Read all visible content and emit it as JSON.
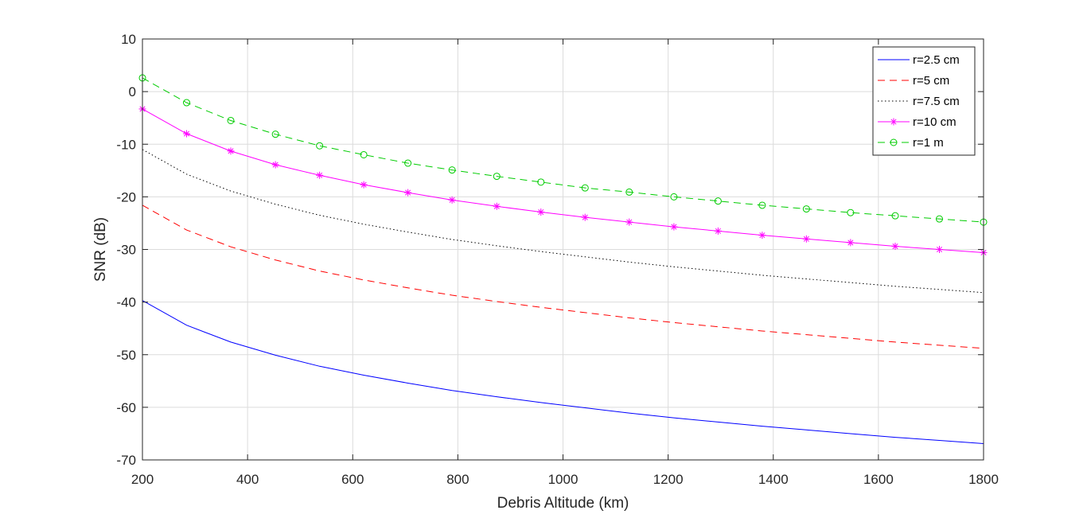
{
  "chart_data": {
    "type": "line",
    "xlabel": "Debris Altitude (km)",
    "ylabel": "SNR (dB)",
    "xlim": [
      200,
      1800
    ],
    "ylim": [
      -70,
      10
    ],
    "xticks": [
      200,
      400,
      600,
      800,
      1000,
      1200,
      1400,
      1600,
      1800
    ],
    "yticks": [
      10,
      0,
      -10,
      -20,
      -30,
      -40,
      -50,
      -60,
      -70
    ],
    "grid": true,
    "legend_position": "top-right",
    "series": [
      {
        "name": "r=2.5 cm",
        "color": "#0000ff",
        "line_style": "solid",
        "marker": "none",
        "x": [
          200,
          284,
          368,
          453,
          537,
          621,
          705,
          789,
          874,
          958,
          1042,
          1126,
          1211,
          1295,
          1379,
          1463,
          1547,
          1632,
          1716,
          1800
        ],
        "y": [
          -39.7,
          -44.4,
          -47.6,
          -50.1,
          -52.2,
          -53.9,
          -55.4,
          -56.8,
          -58.0,
          -59.1,
          -60.1,
          -61.1,
          -62.0,
          -62.8,
          -63.6,
          -64.3,
          -65.0,
          -65.7,
          -66.3,
          -66.9
        ]
      },
      {
        "name": "r=5 cm",
        "color": "#ff0000",
        "line_style": "dashed",
        "marker": "none",
        "x": [
          200,
          284,
          368,
          453,
          537,
          621,
          705,
          789,
          874,
          958,
          1042,
          1126,
          1211,
          1295,
          1379,
          1463,
          1547,
          1632,
          1716,
          1800
        ],
        "y": [
          -21.6,
          -26.3,
          -29.5,
          -32.0,
          -34.1,
          -35.8,
          -37.3,
          -38.7,
          -39.9,
          -41.0,
          -42.0,
          -43.0,
          -43.9,
          -44.7,
          -45.5,
          -46.2,
          -46.9,
          -47.6,
          -48.2,
          -48.8
        ]
      },
      {
        "name": "r=7.5 cm",
        "color": "#000000",
        "line_style": "dotted",
        "marker": "none",
        "x": [
          200,
          284,
          368,
          453,
          537,
          621,
          705,
          789,
          874,
          958,
          1042,
          1126,
          1211,
          1295,
          1379,
          1463,
          1547,
          1632,
          1716,
          1800
        ],
        "y": [
          -11.0,
          -15.7,
          -18.9,
          -21.4,
          -23.5,
          -25.2,
          -26.7,
          -28.1,
          -29.3,
          -30.4,
          -31.4,
          -32.4,
          -33.3,
          -34.1,
          -34.9,
          -35.6,
          -36.3,
          -37.0,
          -37.6,
          -38.2
        ]
      },
      {
        "name": "r=10 cm",
        "color": "#ff00ff",
        "line_style": "solid",
        "marker": "asterisk",
        "x": [
          200,
          284,
          368,
          453,
          537,
          621,
          705,
          789,
          874,
          958,
          1042,
          1126,
          1211,
          1295,
          1379,
          1463,
          1547,
          1632,
          1716,
          1800
        ],
        "y": [
          -3.3,
          -8.0,
          -11.3,
          -13.9,
          -15.9,
          -17.7,
          -19.2,
          -20.6,
          -21.8,
          -22.9,
          -23.9,
          -24.8,
          -25.7,
          -26.5,
          -27.3,
          -28.0,
          -28.7,
          -29.4,
          -30.0,
          -30.6
        ]
      },
      {
        "name": "r=1 m",
        "color": "#00cc00",
        "line_style": "dashed",
        "marker": "circle",
        "x": [
          200,
          284,
          368,
          453,
          537,
          621,
          705,
          789,
          874,
          958,
          1042,
          1126,
          1211,
          1295,
          1379,
          1463,
          1547,
          1632,
          1716,
          1800
        ],
        "y": [
          2.6,
          -2.1,
          -5.5,
          -8.1,
          -10.3,
          -12.0,
          -13.6,
          -14.9,
          -16.1,
          -17.2,
          -18.3,
          -19.1,
          -20.0,
          -20.8,
          -21.6,
          -22.3,
          -23.0,
          -23.6,
          -24.2,
          -24.8
        ]
      }
    ]
  }
}
